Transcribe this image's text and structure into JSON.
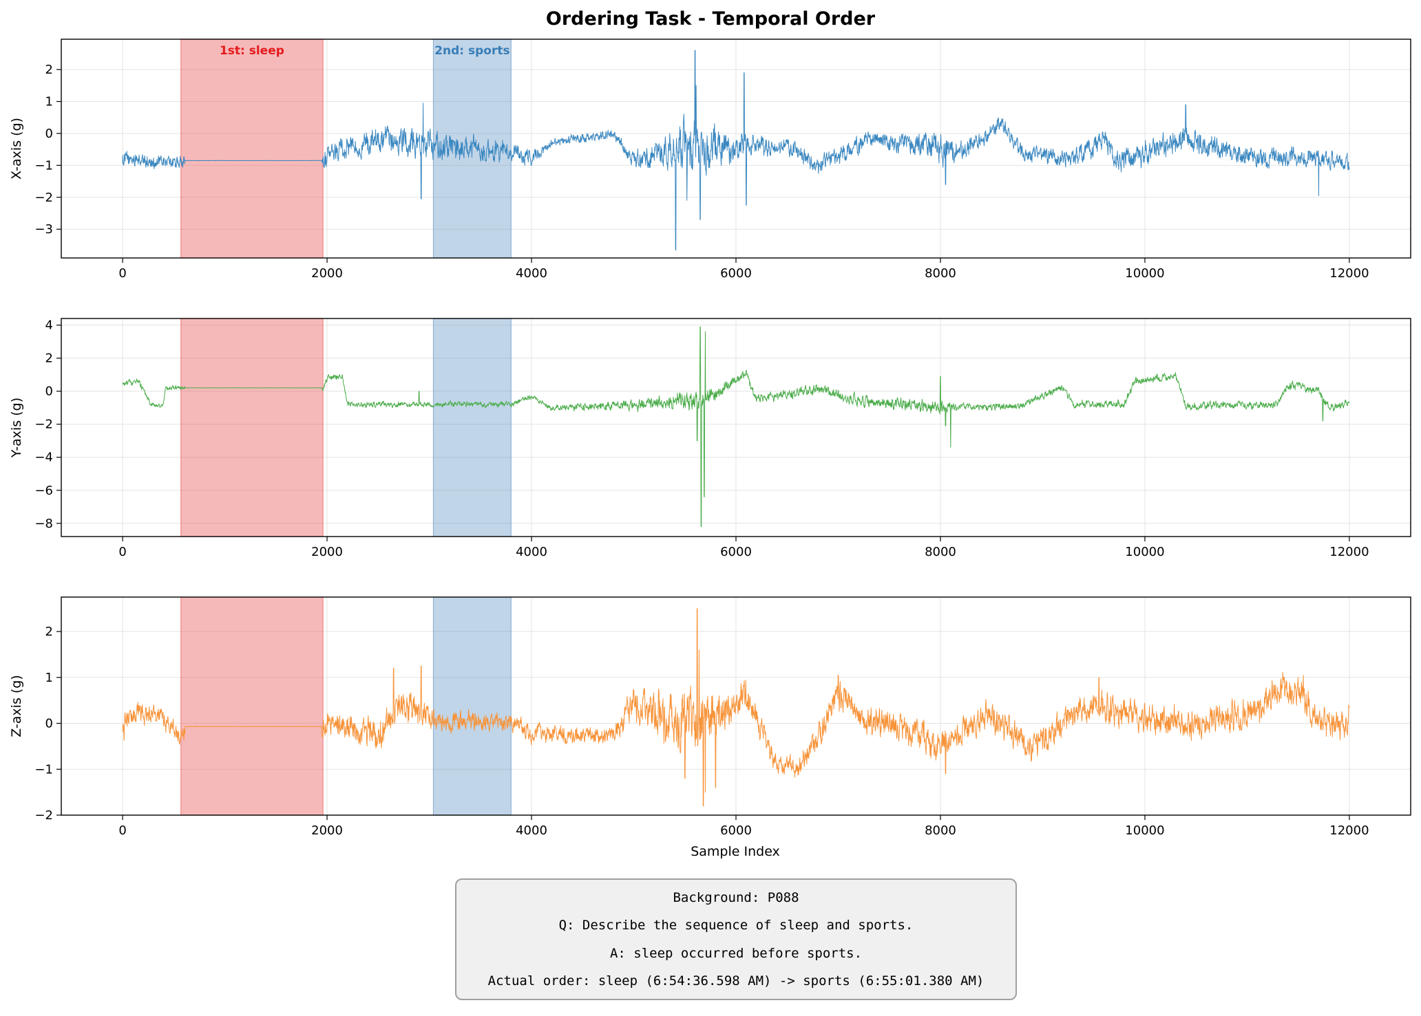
{
  "chart_data": {
    "type": "line",
    "title": "Ordering Task - Temporal Order",
    "xlabel": "Sample Index",
    "xlim": [
      -600,
      12600
    ],
    "x_ticks": [
      0,
      2000,
      4000,
      6000,
      8000,
      10000,
      12000
    ],
    "x_tick_labels": [
      "0",
      "2000",
      "4000",
      "6000",
      "8000",
      "10000",
      "12000"
    ],
    "grid": true,
    "n_samples": 12000,
    "regions": [
      {
        "label": "1st: sleep",
        "start": 570,
        "end": 1960,
        "color": "#e8504f",
        "label_color": "#e41a1c"
      },
      {
        "label": "2nd: sports",
        "start": 3040,
        "end": 3800,
        "color": "#5b91c2",
        "label_color": "#377eb8"
      }
    ],
    "series": [
      {
        "name": "X-axis",
        "ylabel": "X-axis (g)",
        "color": "#3a87c0",
        "ylim": [
          -3.9,
          2.95
        ],
        "y_ticks": [
          -3,
          -2,
          -1,
          0,
          1,
          2
        ],
        "y_tick_labels": [
          "−3",
          "−2",
          "−1",
          "0",
          "1",
          "2"
        ],
        "sleep_level": -0.85,
        "baseline": [
          [
            0,
            -0.8
          ],
          [
            300,
            -0.9
          ],
          [
            570,
            -0.9
          ],
          [
            1960,
            -0.85
          ],
          [
            2200,
            -0.4
          ],
          [
            2800,
            -0.2
          ],
          [
            3040,
            -0.4
          ],
          [
            3800,
            -0.6
          ],
          [
            4000,
            -0.8
          ],
          [
            4200,
            -0.3
          ],
          [
            4800,
            0.0
          ],
          [
            5000,
            -0.9
          ],
          [
            5400,
            -0.5
          ],
          [
            5600,
            -0.4
          ],
          [
            6100,
            -0.4
          ],
          [
            6500,
            -0.4
          ],
          [
            6800,
            -1.0
          ],
          [
            7300,
            -0.2
          ],
          [
            7800,
            -0.4
          ],
          [
            8200,
            -0.6
          ],
          [
            8600,
            0.3
          ],
          [
            8800,
            -0.6
          ],
          [
            9300,
            -0.8
          ],
          [
            9600,
            -0.2
          ],
          [
            9700,
            -0.9
          ],
          [
            10400,
            -0.1
          ],
          [
            10800,
            -0.6
          ],
          [
            11200,
            -0.8
          ],
          [
            11700,
            -0.7
          ],
          [
            12000,
            -0.9
          ]
        ],
        "noise": [
          [
            0,
            0.2
          ],
          [
            570,
            0.15
          ],
          [
            1960,
            0.25
          ],
          [
            3040,
            0.35
          ],
          [
            3800,
            0.25
          ],
          [
            4200,
            0.1
          ],
          [
            4900,
            0.15
          ],
          [
            5300,
            0.4
          ],
          [
            5500,
            0.6
          ],
          [
            5700,
            0.6
          ],
          [
            6000,
            0.35
          ],
          [
            6400,
            0.18
          ],
          [
            7500,
            0.22
          ],
          [
            8000,
            0.35
          ],
          [
            8300,
            0.2
          ],
          [
            9000,
            0.2
          ],
          [
            10000,
            0.3
          ],
          [
            11000,
            0.25
          ],
          [
            12000,
            0.2
          ]
        ],
        "spikes": [
          [
            5410,
            -3.65
          ],
          [
            5600,
            2.6
          ],
          [
            5610,
            1.5
          ],
          [
            5650,
            -2.7
          ],
          [
            6080,
            1.9
          ],
          [
            6100,
            -2.25
          ],
          [
            2920,
            -2.05
          ],
          [
            2940,
            0.95
          ],
          [
            11700,
            -1.95
          ],
          [
            10400,
            0.9
          ],
          [
            8050,
            -1.6
          ],
          [
            5520,
            -2.1
          ]
        ]
      },
      {
        "name": "Y-axis",
        "ylabel": "Y-axis (g)",
        "color": "#4cac4b",
        "ylim": [
          -8.8,
          4.4
        ],
        "y_ticks": [
          -8,
          -6,
          -4,
          -2,
          0,
          2,
          4
        ],
        "y_tick_labels": [
          "−8",
          "−6",
          "−4",
          "−2",
          "0",
          "2",
          "4"
        ],
        "sleep_level": 0.2,
        "baseline": [
          [
            0,
            0.4
          ],
          [
            150,
            0.6
          ],
          [
            280,
            -0.8
          ],
          [
            400,
            -0.9
          ],
          [
            420,
            0.2
          ],
          [
            570,
            0.2
          ],
          [
            1960,
            0.2
          ],
          [
            2000,
            0.8
          ],
          [
            2150,
            0.9
          ],
          [
            2200,
            -0.8
          ],
          [
            3040,
            -0.8
          ],
          [
            3800,
            -0.8
          ],
          [
            4000,
            -0.3
          ],
          [
            4200,
            -1.0
          ],
          [
            5000,
            -0.8
          ],
          [
            5500,
            -0.6
          ],
          [
            5700,
            -0.5
          ],
          [
            5900,
            0.3
          ],
          [
            6100,
            1.1
          ],
          [
            6200,
            -0.5
          ],
          [
            6800,
            0.1
          ],
          [
            7200,
            -0.6
          ],
          [
            8000,
            -1.0
          ],
          [
            8800,
            -0.9
          ],
          [
            9000,
            -0.3
          ],
          [
            9200,
            0.2
          ],
          [
            9300,
            -0.8
          ],
          [
            9800,
            -0.8
          ],
          [
            9900,
            0.6
          ],
          [
            10300,
            0.9
          ],
          [
            10400,
            -0.9
          ],
          [
            11300,
            -0.8
          ],
          [
            11400,
            0.4
          ],
          [
            11700,
            0.0
          ],
          [
            11800,
            -1.0
          ],
          [
            12000,
            -0.7
          ]
        ],
        "noise": [
          [
            0,
            0.15
          ],
          [
            570,
            0.1
          ],
          [
            1960,
            0.15
          ],
          [
            3040,
            0.12
          ],
          [
            4200,
            0.12
          ],
          [
            5300,
            0.3
          ],
          [
            5600,
            0.5
          ],
          [
            5700,
            0.4
          ],
          [
            6000,
            0.2
          ],
          [
            8000,
            0.3
          ],
          [
            8200,
            0.15
          ],
          [
            12000,
            0.2
          ]
        ],
        "spikes": [
          [
            5660,
            -8.2
          ],
          [
            5650,
            3.9
          ],
          [
            5690,
            -6.4
          ],
          [
            5700,
            3.6
          ],
          [
            5620,
            -3.0
          ],
          [
            8050,
            -2.1
          ],
          [
            8100,
            -3.4
          ],
          [
            8000,
            0.9
          ],
          [
            11740,
            -1.8
          ],
          [
            2900,
            0.0
          ]
        ]
      },
      {
        "name": "Z-axis",
        "ylabel": "Z-axis (g)",
        "color": "#f79339",
        "ylim": [
          -2.0,
          2.75
        ],
        "y_ticks": [
          -2,
          -1,
          0,
          1,
          2
        ],
        "y_tick_labels": [
          "−2",
          "−1",
          "0",
          "1",
          "2"
        ],
        "sleep_level": -0.07,
        "baseline": [
          [
            0,
            -0.1
          ],
          [
            150,
            0.3
          ],
          [
            350,
            0.2
          ],
          [
            570,
            -0.3
          ],
          [
            620,
            -0.07
          ],
          [
            1960,
            -0.07
          ],
          [
            2100,
            0.0
          ],
          [
            2300,
            -0.2
          ],
          [
            2500,
            -0.3
          ],
          [
            2700,
            0.4
          ],
          [
            2900,
            0.2
          ],
          [
            3040,
            0.05
          ],
          [
            3800,
            0.0
          ],
          [
            4000,
            -0.2
          ],
          [
            4800,
            -0.3
          ],
          [
            5000,
            0.4
          ],
          [
            5300,
            0.2
          ],
          [
            5600,
            0.0
          ],
          [
            5900,
            0.3
          ],
          [
            6100,
            0.6
          ],
          [
            6400,
            -0.9
          ],
          [
            6600,
            -1.0
          ],
          [
            6800,
            -0.3
          ],
          [
            7000,
            0.7
          ],
          [
            7300,
            0.0
          ],
          [
            7600,
            -0.1
          ],
          [
            8000,
            -0.5
          ],
          [
            8500,
            0.2
          ],
          [
            8900,
            -0.6
          ],
          [
            9300,
            0.2
          ],
          [
            9500,
            0.4
          ],
          [
            10000,
            0.1
          ],
          [
            10500,
            0.0
          ],
          [
            11000,
            0.2
          ],
          [
            11300,
            0.7
          ],
          [
            11500,
            0.8
          ],
          [
            11700,
            0.0
          ],
          [
            12000,
            0.0
          ]
        ],
        "noise": [
          [
            0,
            0.2
          ],
          [
            570,
            0.15
          ],
          [
            1960,
            0.18
          ],
          [
            2600,
            0.3
          ],
          [
            3040,
            0.2
          ],
          [
            3800,
            0.15
          ],
          [
            4800,
            0.15
          ],
          [
            5300,
            0.45
          ],
          [
            5700,
            0.5
          ],
          [
            6000,
            0.3
          ],
          [
            6400,
            0.15
          ],
          [
            7000,
            0.25
          ],
          [
            8000,
            0.25
          ],
          [
            12000,
            0.25
          ]
        ],
        "spikes": [
          [
            5620,
            2.5
          ],
          [
            5640,
            1.6
          ],
          [
            5680,
            -1.8
          ],
          [
            5700,
            -1.5
          ],
          [
            5500,
            -1.2
          ],
          [
            5800,
            -1.4
          ],
          [
            7000,
            1.05
          ],
          [
            2650,
            1.2
          ],
          [
            2920,
            1.25
          ],
          [
            8050,
            -1.1
          ],
          [
            9550,
            1.0
          ],
          [
            11550,
            1.05
          ]
        ]
      }
    ]
  },
  "info_box": {
    "background": "Background: P088",
    "question": "Q: Describe the sequence of sleep and sports.",
    "answer": "A: sleep occurred before sports.",
    "actual": "Actual order: sleep (6:54:36.598 AM) -> sports (6:55:01.380 AM)"
  }
}
